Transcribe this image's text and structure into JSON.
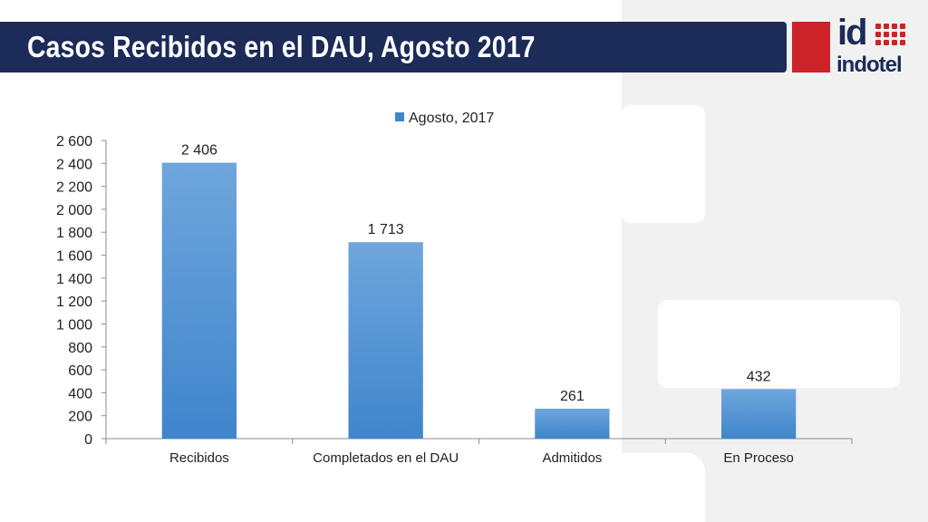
{
  "slide": {
    "title": "Casos Recibidos en el DAU, Agosto 2017",
    "logo": {
      "mark": "id",
      "word": "indotel"
    }
  },
  "colors": {
    "title_bar": "#1c2b58",
    "logo_red": "#cc2229",
    "bar_top": "#6fa6dc",
    "bar_bottom": "#3f85cc",
    "panel_gray": "#f1f1f1"
  },
  "chart_data": {
    "type": "bar",
    "title": "",
    "xlabel": "",
    "ylabel": "",
    "categories": [
      "Recibidos",
      "Completados en el DAU",
      "Admitidos",
      "En Proceso"
    ],
    "series": [
      {
        "name": "Agosto, 2017",
        "values": [
          2406,
          1713,
          261,
          432
        ]
      }
    ],
    "data_labels": [
      "2 406",
      "1 713",
      "261",
      "432"
    ],
    "ylim": [
      0,
      2600
    ],
    "yticks": [
      0,
      200,
      400,
      600,
      800,
      1000,
      1200,
      1400,
      1600,
      1800,
      2000,
      2200,
      2400,
      2600
    ],
    "ytick_labels": [
      "0",
      "200",
      "400",
      "600",
      "800",
      "1 000",
      "1 200",
      "1 400",
      "1 600",
      "1 800",
      "2 000",
      "2 200",
      "2 400",
      "2 600"
    ],
    "grid": false,
    "legend_position": "top"
  }
}
